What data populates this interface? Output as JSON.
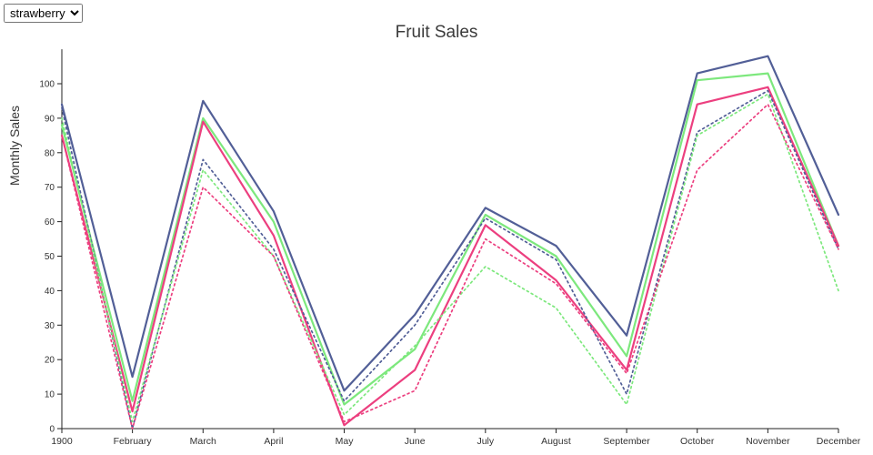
{
  "controls": {
    "fruit_select": {
      "value": "strawberry"
    }
  },
  "chart_data": {
    "type": "line",
    "title": "Fruit Sales",
    "ylabel": "Monthly Sales",
    "x_tick_labels": [
      "1900",
      "February",
      "March",
      "April",
      "May",
      "June",
      "July",
      "August",
      "September",
      "October",
      "November",
      "December"
    ],
    "ylim": [
      0,
      110
    ],
    "yticks": [
      0,
      10,
      20,
      30,
      40,
      50,
      60,
      70,
      80,
      90,
      100
    ],
    "grid": false,
    "legend": "none",
    "series": [
      {
        "name": "solid-blue",
        "color": "#525f97",
        "dashed": false,
        "values": [
          94,
          15,
          95,
          63,
          11,
          33,
          64,
          53,
          27,
          103,
          108,
          62
        ]
      },
      {
        "name": "solid-green",
        "color": "#7de87d",
        "dashed": false,
        "values": [
          88,
          8,
          90,
          60,
          7,
          23,
          62,
          50,
          21,
          101,
          103,
          53
        ]
      },
      {
        "name": "solid-pink",
        "color": "#ec3f7f",
        "dashed": false,
        "values": [
          85,
          5,
          89,
          56,
          1,
          17,
          59,
          43,
          17,
          94,
          99,
          53
        ]
      },
      {
        "name": "dotted-blue",
        "color": "#525f97",
        "dashed": true,
        "values": [
          93,
          0,
          78,
          52,
          8,
          30,
          61,
          49,
          10,
          86,
          98,
          52
        ]
      },
      {
        "name": "dotted-green",
        "color": "#7de87d",
        "dashed": true,
        "values": [
          90,
          2,
          75,
          50,
          4,
          24,
          47,
          35,
          7,
          85,
          97,
          40
        ]
      },
      {
        "name": "dotted-pink",
        "color": "#ec3f7f",
        "dashed": true,
        "values": [
          85,
          0,
          70,
          50,
          2,
          11,
          55,
          42,
          16,
          75,
          94,
          52
        ]
      }
    ],
    "axis_color": "#222222",
    "tick_label_color": "#333333"
  }
}
